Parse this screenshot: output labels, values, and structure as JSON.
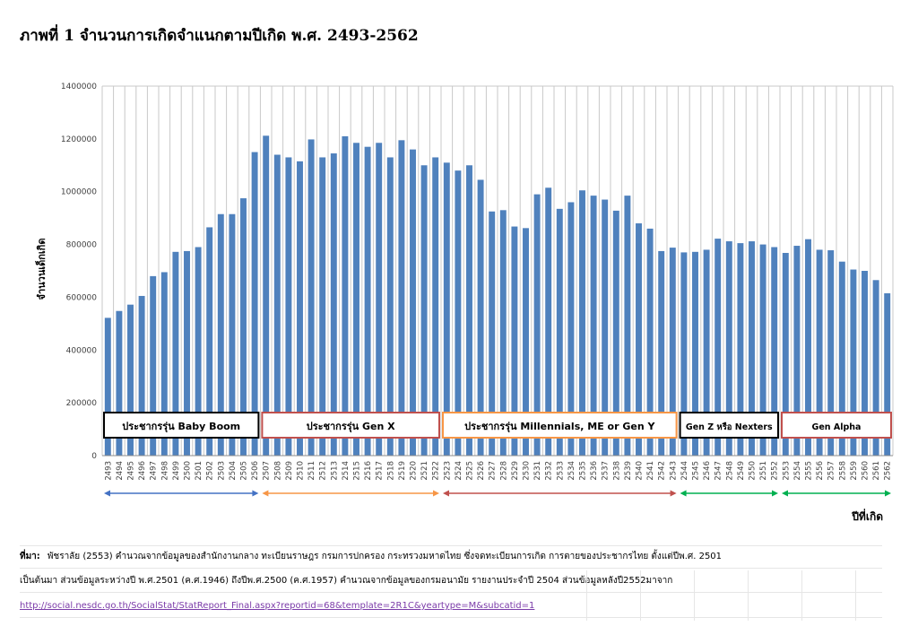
{
  "title": "ภาพที่ 1 จำนวนการเกิดจำแนกตามปีเกิด พ.ศ. 2493-2562",
  "chart_data": {
    "type": "bar",
    "ylabel": "จำนวนเด็กเกิด",
    "xlabel": "ปีที่เกิด",
    "ylim": [
      0,
      1400000
    ],
    "yticks": [
      0,
      200000,
      400000,
      600000,
      800000,
      1000000,
      1200000,
      1400000
    ],
    "ytick_labels": [
      "0",
      "200000",
      "400000",
      "600000",
      "800000",
      "1000000",
      "1200000",
      "1400000"
    ],
    "grid": "vertical",
    "bar_color": "#4f81bd",
    "categories": [
      "2493",
      "2494",
      "2495",
      "2496",
      "2497",
      "2498",
      "2499",
      "2500",
      "2501",
      "2502",
      "2503",
      "2504",
      "2505",
      "2506",
      "2507",
      "2508",
      "2509",
      "2510",
      "2511",
      "2512",
      "2513",
      "2514",
      "2515",
      "2516",
      "2517",
      "2518",
      "2519",
      "2520",
      "2521",
      "2522",
      "2523",
      "2524",
      "2525",
      "2526",
      "2527",
      "2528",
      "2529",
      "2530",
      "2531",
      "2532",
      "2533",
      "2534",
      "2535",
      "2536",
      "2537",
      "2538",
      "2539",
      "2540",
      "2541",
      "2542",
      "2543",
      "2544",
      "2545",
      "2546",
      "2547",
      "2548",
      "2549",
      "2550",
      "2551",
      "2552",
      "2553",
      "2554",
      "2555",
      "2556",
      "2557",
      "2558",
      "2559",
      "2560",
      "2561",
      "2562"
    ],
    "values": [
      522000,
      548000,
      572000,
      605000,
      680000,
      695000,
      772000,
      775000,
      790000,
      865000,
      915000,
      915000,
      975000,
      1150000,
      1212000,
      1140000,
      1130000,
      1115000,
      1198000,
      1130000,
      1145000,
      1210000,
      1185000,
      1170000,
      1185000,
      1130000,
      1195000,
      1160000,
      1100000,
      1130000,
      1110000,
      1080000,
      1100000,
      1045000,
      925000,
      930000,
      868000,
      862000,
      990000,
      1015000,
      935000,
      960000,
      1005000,
      985000,
      970000,
      928000,
      985000,
      880000,
      860000,
      775000,
      788000,
      770000,
      772000,
      780000,
      822000,
      812000,
      805000,
      812000,
      800000,
      790000,
      768000,
      795000,
      820000,
      780000,
      778000,
      735000,
      705000,
      700000,
      665000,
      615000
    ],
    "generations": [
      {
        "name": "ประชากรรุ่น Baby Boom",
        "from": "2493",
        "to": "2506",
        "color": "#000000",
        "arrow_color": "#4472c4"
      },
      {
        "name": "ประชากรรุ่น Gen X",
        "from": "2507",
        "to": "2522",
        "color": "#c0504d",
        "arrow_color": "#f79646"
      },
      {
        "name": "ประชากรรุ่น Millennials, ME or Gen Y",
        "from": "2523",
        "to": "2543",
        "color": "#f79646",
        "arrow_color": "#c0504d"
      },
      {
        "name": "Gen Z หรือ Nexters",
        "from": "2544",
        "to": "2552",
        "color": "#000000",
        "arrow_color": "#00b050"
      },
      {
        "name": "Gen Alpha",
        "from": "2553",
        "to": "2562",
        "color": "#c0504d",
        "arrow_color": "#00b050"
      }
    ]
  },
  "notes": {
    "source_label": "ที่มา:",
    "line1": "พัชราลัย (2553) คำนวณจากข้อมูลของสำนักงานกลาง ทะเบียนราษฎร กรมการปกครอง กระทรวงมหาดไทย ซึ่งจดทะเบียนการเกิด การตายของประชากรไทย ตั้งแต่ปีพ.ศ. 2501",
    "line2": "เป็นต้นมา ส่วนข้อมูลระหว่างปี พ.ศ.2501 (ค.ศ.1946) ถึงปีพ.ศ.2500 (ค.ศ.1957) คำนวณจากข้อมูลของกรมอนามัย รายงานประจำปี 2504 ส่วนข้อมูลหลังปี2552มาจาก",
    "link": "http://social.nesdc.go.th/SocialStat/StatReport_Final.aspx?reportid=68&template=2R1C&yeartype=M&subcatid=1"
  }
}
